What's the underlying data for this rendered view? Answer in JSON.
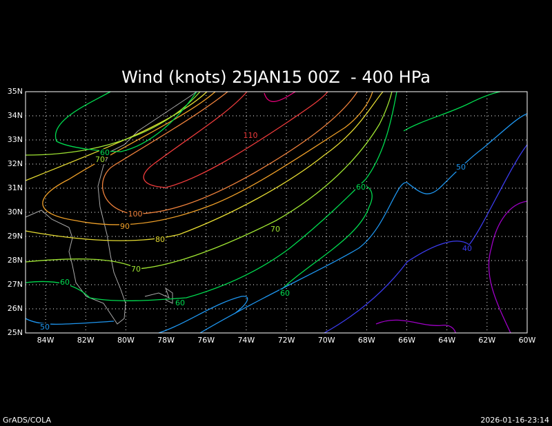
{
  "map": {
    "title": "Wind (knots) 25JAN15 00Z  - 400 HPa",
    "lon_range": [
      -85,
      -60
    ],
    "lat_range": [
      25,
      35
    ],
    "lon_ticks": [
      {
        "value": -84,
        "label": "84W"
      },
      {
        "value": -82,
        "label": "82W"
      },
      {
        "value": -80,
        "label": "80W"
      },
      {
        "value": -78,
        "label": "78W"
      },
      {
        "value": -76,
        "label": "76W"
      },
      {
        "value": -74,
        "label": "74W"
      },
      {
        "value": -72,
        "label": "72W"
      },
      {
        "value": -70,
        "label": "70W"
      },
      {
        "value": -68,
        "label": "68W"
      },
      {
        "value": -66,
        "label": "66W"
      },
      {
        "value": -64,
        "label": "64W"
      },
      {
        "value": -62,
        "label": "62W"
      },
      {
        "value": -60,
        "label": "60W"
      }
    ],
    "lat_ticks": [
      {
        "value": 25,
        "label": "25N"
      },
      {
        "value": 26,
        "label": "26N"
      },
      {
        "value": 27,
        "label": "27N"
      },
      {
        "value": 28,
        "label": "28N"
      },
      {
        "value": 29,
        "label": "29N"
      },
      {
        "value": 30,
        "label": "30N"
      },
      {
        "value": 31,
        "label": "31N"
      },
      {
        "value": 32,
        "label": "32N"
      },
      {
        "value": 33,
        "label": "33N"
      },
      {
        "value": 34,
        "label": "34N"
      },
      {
        "value": 35,
        "label": "35N"
      }
    ],
    "contour_labels": [
      {
        "text": "60",
        "color": "#00dc50"
      },
      {
        "text": "70",
        "color": "#a0e632"
      },
      {
        "text": "110",
        "color": "#f03c3c"
      },
      {
        "text": "100",
        "color": "#f0823c"
      },
      {
        "text": "90",
        "color": "#f0a028"
      },
      {
        "text": "80",
        "color": "#e6dc32"
      },
      {
        "text": "70",
        "color": "#a0e632"
      },
      {
        "text": "60",
        "color": "#00dc50"
      },
      {
        "text": "60",
        "color": "#00dc50"
      },
      {
        "text": "50",
        "color": "#1e96f0"
      },
      {
        "text": "60",
        "color": "#00dc50"
      },
      {
        "text": "70",
        "color": "#a0e632"
      },
      {
        "text": "60",
        "color": "#00dc50"
      },
      {
        "text": "50",
        "color": "#1e96f0"
      },
      {
        "text": "40",
        "color": "#3c3cf0"
      }
    ],
    "footer_left": "GrADS/COLA",
    "footer_right": "2026-01-16-23:14"
  }
}
